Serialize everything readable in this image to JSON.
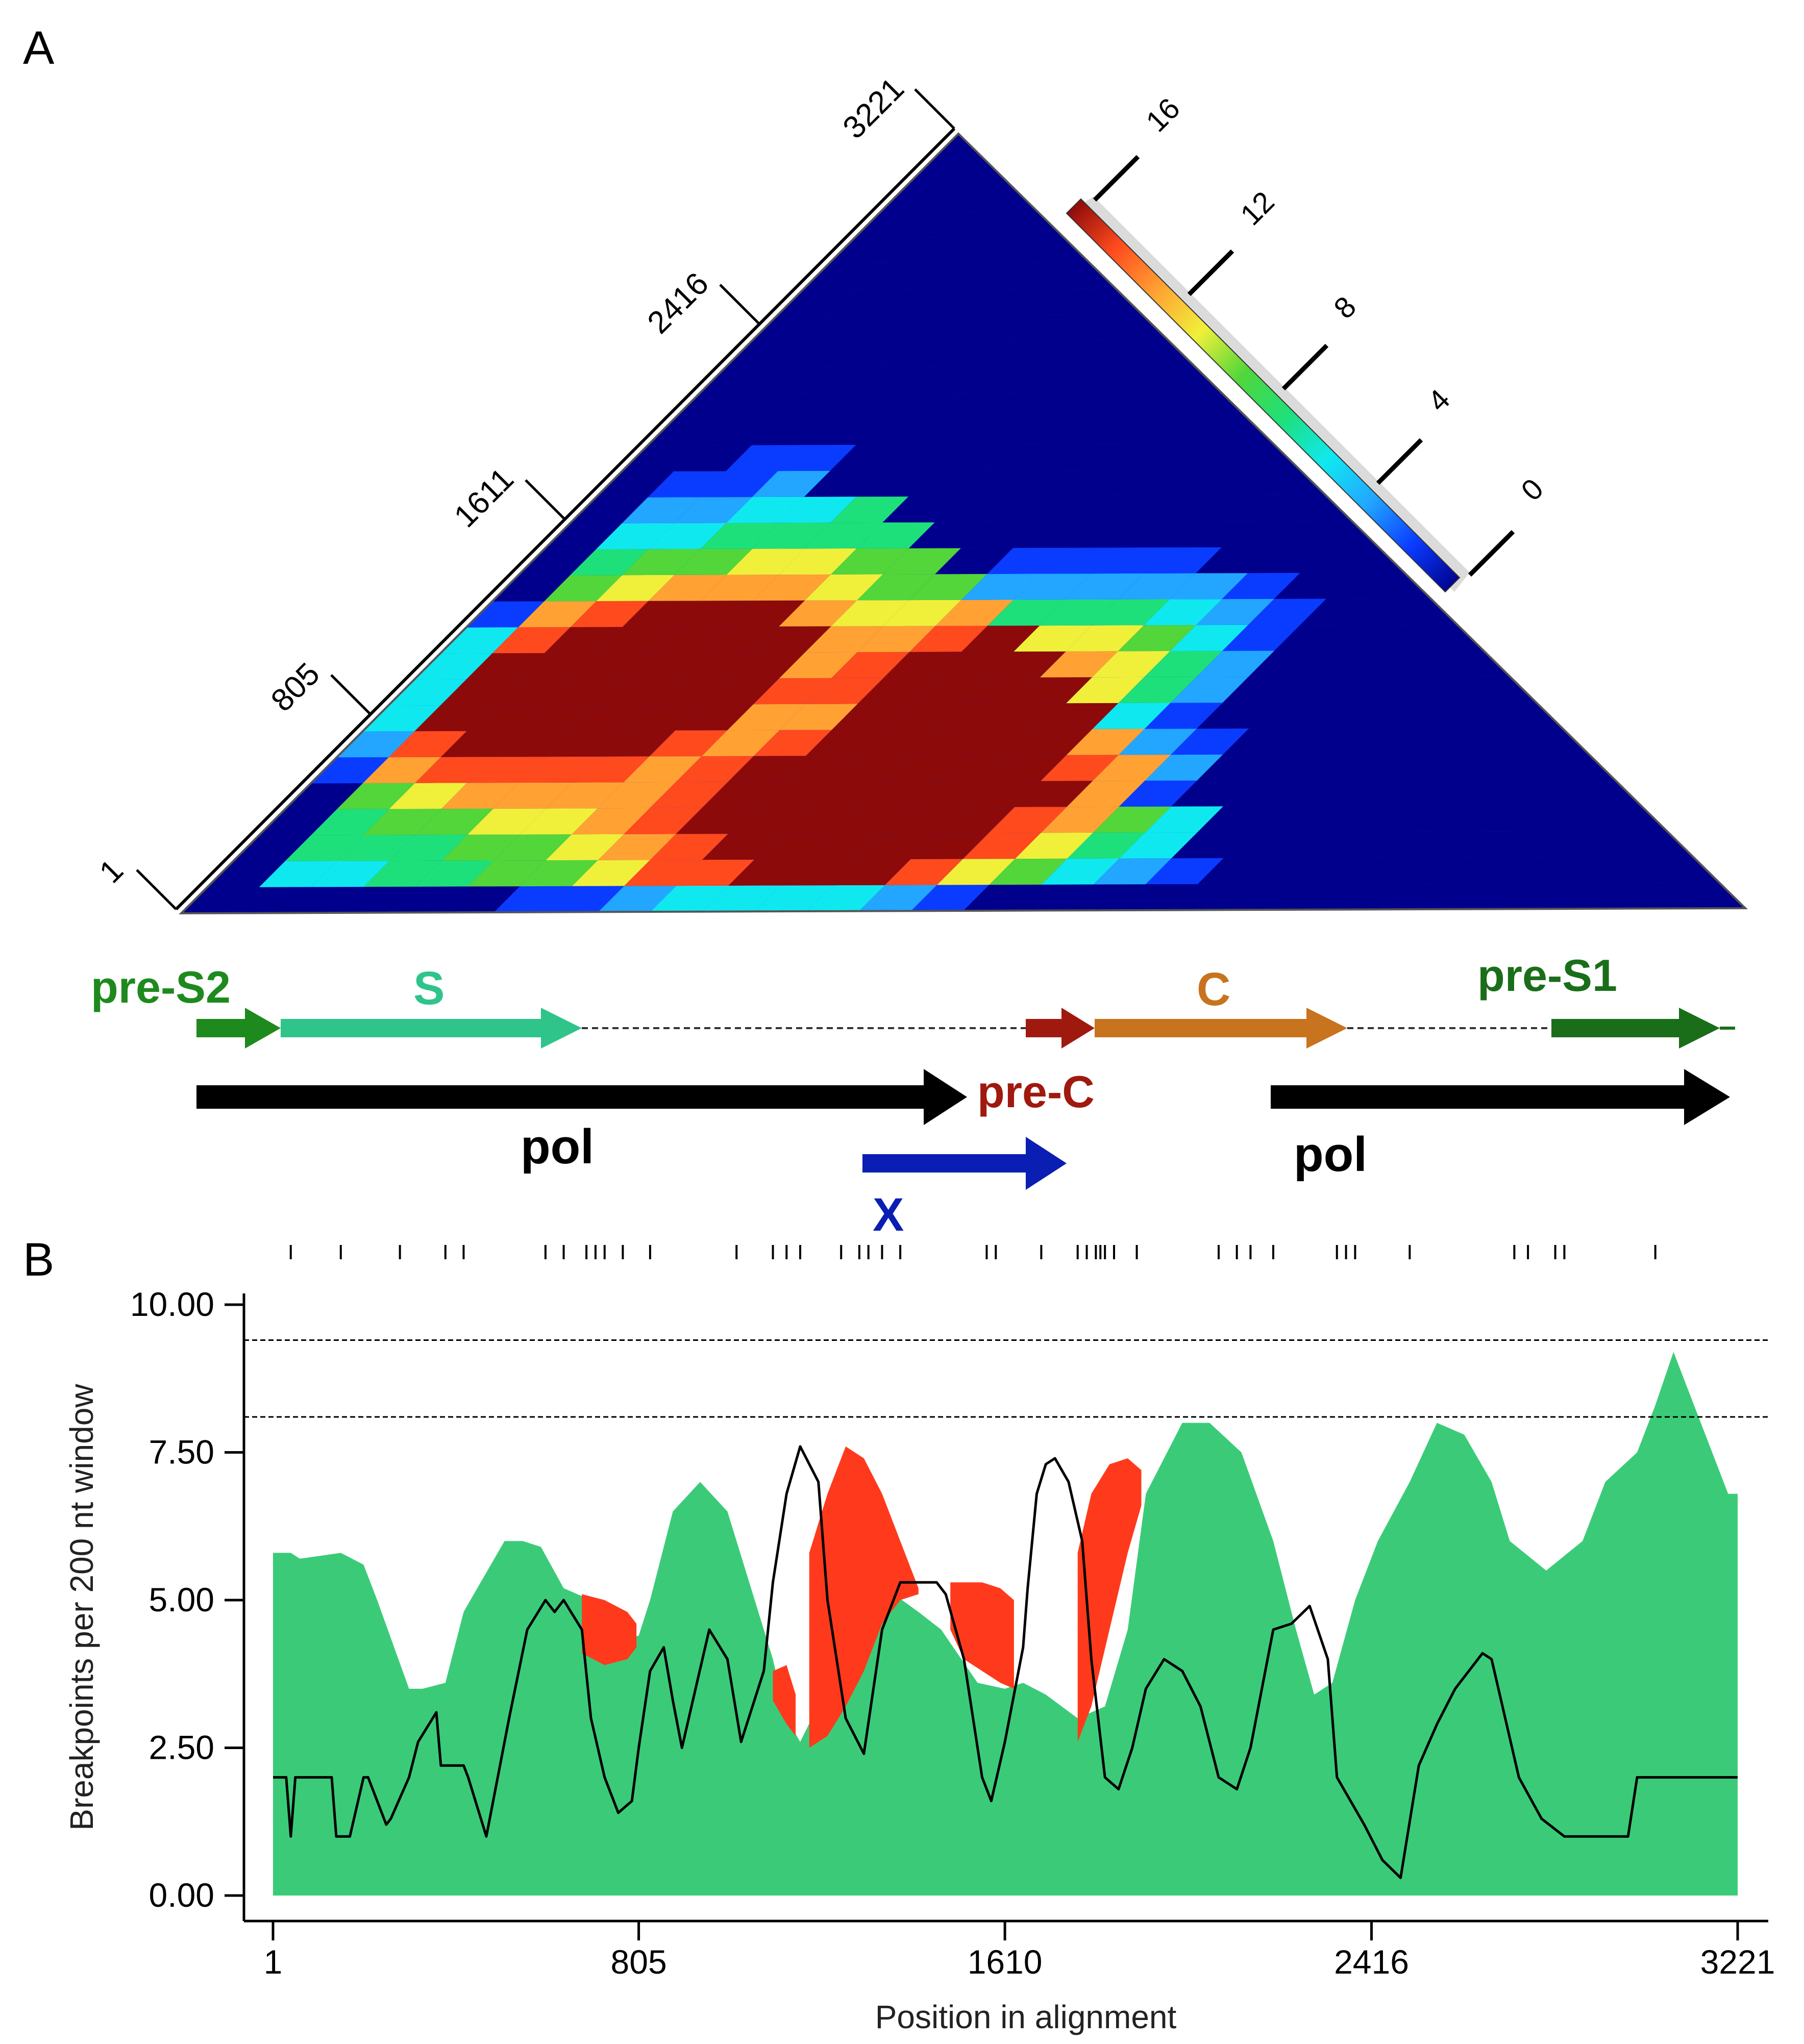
{
  "panel_a": {
    "label": "A",
    "triangle_tick_labels": [
      "1",
      "805",
      "1611",
      "2416",
      "3221"
    ],
    "colorbar": {
      "tick_labels": [
        "0",
        "4",
        "8",
        "12",
        "16"
      ],
      "colors": [
        "#00008c",
        "#0a3cff",
        "#22a6ff",
        "#10e8f0",
        "#1ee07a",
        "#52d63a",
        "#f0f03a",
        "#ffa233",
        "#ff4a1e",
        "#8c0a0a"
      ]
    },
    "genes": [
      {
        "id": "pre-S2",
        "label": "pre-S2",
        "color": "#1e8a1e"
      },
      {
        "id": "S",
        "label": "S",
        "color": "#2ec48a"
      },
      {
        "id": "C",
        "label": "C",
        "color": "#c8731e"
      },
      {
        "id": "pre-S1",
        "label": "pre-S1",
        "color": "#1a6e1a"
      },
      {
        "id": "pre-C",
        "label": "pre-C",
        "color": "#a0190f"
      },
      {
        "id": "pol-left",
        "label": "pol",
        "color": "#000000"
      },
      {
        "id": "pol-right",
        "label": "pol",
        "color": "#000000"
      },
      {
        "id": "X",
        "label": "X",
        "color": "#0a1eb4"
      }
    ]
  },
  "panel_b": {
    "label": "B"
  },
  "chart_data": {
    "type": "area",
    "xlabel": "Position in alignment",
    "ylabel": "Breakpoints per 200 nt window",
    "xlim": [
      1,
      3221
    ],
    "ylim": [
      0,
      10
    ],
    "x_ticks": [
      1,
      805,
      1610,
      2416,
      3221
    ],
    "x_tick_labels": [
      "1",
      "805",
      "1610",
      "2416",
      "3221"
    ],
    "y_ticks": [
      0,
      2.5,
      5,
      7.5,
      10
    ],
    "y_tick_labels": [
      "0.00",
      "2.50",
      "5.00",
      "7.50",
      "10.00"
    ],
    "threshold_lines": [
      9.4,
      8.1
    ],
    "breakpoint_ticks": [
      40,
      150,
      280,
      380,
      420,
      600,
      640,
      690,
      710,
      730,
      770,
      830,
      1020,
      1100,
      1130,
      1160,
      1250,
      1290,
      1310,
      1340,
      1380,
      1570,
      1590,
      1690,
      1770,
      1790,
      1810,
      1820,
      1830,
      1850,
      1900,
      2080,
      2120,
      2150,
      2200,
      2340,
      2360,
      2380,
      2500,
      2730,
      2760,
      2820,
      2840,
      3040
    ],
    "series": [
      {
        "type": "area",
        "color": "#3bcb78",
        "x": [
          1,
          40,
          60,
          150,
          200,
          230,
          300,
          330,
          380,
          420,
          450,
          510,
          550,
          590,
          640,
          700,
          760,
          805,
          830,
          880,
          940,
          1000,
          1060,
          1100,
          1130,
          1160,
          1250,
          1330,
          1420,
          1470,
          1550,
          1610,
          1650,
          1700,
          1770,
          1830,
          1880,
          1920,
          2000,
          2060,
          2130,
          2200,
          2250,
          2290,
          2330,
          2380,
          2430,
          2500,
          2560,
          2620,
          2680,
          2720,
          2800,
          2880,
          2930,
          3000,
          3040,
          3080,
          3140,
          3200,
          3221
        ],
        "y": [
          5.8,
          5.8,
          5.7,
          5.8,
          5.6,
          5.0,
          3.5,
          3.5,
          3.6,
          4.8,
          5.2,
          6.0,
          6.0,
          5.9,
          5.2,
          5.0,
          4.3,
          4.4,
          5.0,
          6.5,
          7.0,
          6.5,
          5.0,
          4.0,
          3.0,
          2.6,
          4.0,
          5.3,
          4.8,
          4.5,
          3.6,
          3.5,
          3.6,
          3.4,
          3.0,
          3.2,
          4.5,
          6.8,
          8.0,
          8.0,
          7.5,
          6.0,
          4.5,
          3.4,
          3.6,
          5.0,
          6.0,
          7.0,
          8.0,
          7.8,
          7.0,
          6.0,
          5.5,
          6.0,
          7.0,
          7.5,
          8.3,
          9.2,
          8.0,
          6.8,
          6.8
        ]
      },
      {
        "type": "line",
        "color": "#000000",
        "x": [
          1,
          30,
          40,
          50,
          130,
          140,
          170,
          200,
          210,
          250,
          260,
          300,
          320,
          360,
          370,
          400,
          420,
          430,
          470,
          520,
          560,
          600,
          620,
          640,
          680,
          700,
          730,
          760,
          790,
          805,
          830,
          860,
          880,
          900,
          930,
          960,
          1000,
          1030,
          1080,
          1100,
          1130,
          1160,
          1200,
          1220,
          1260,
          1300,
          1340,
          1380,
          1420,
          1460,
          1480,
          1520,
          1560,
          1580,
          1610,
          1650,
          1660,
          1680,
          1700,
          1720,
          1750,
          1780,
          1800,
          1830,
          1860,
          1890,
          1920,
          1960,
          2000,
          2040,
          2080,
          2120,
          2150,
          2200,
          2240,
          2280,
          2320,
          2340,
          2400,
          2440,
          2480,
          2520,
          2560,
          2600,
          2660,
          2680,
          2740,
          2790,
          2840,
          2880,
          2920,
          2980,
          3000,
          3040,
          3100,
          3140,
          3160,
          3200,
          3221
        ],
        "y": [
          2.0,
          2.0,
          1.0,
          2.0,
          2.0,
          1.0,
          1.0,
          2.0,
          2.0,
          1.2,
          1.3,
          2.0,
          2.6,
          3.1,
          2.2,
          2.2,
          2.2,
          2.0,
          1.0,
          3.0,
          4.5,
          5.0,
          4.8,
          5.0,
          4.5,
          3.0,
          2.0,
          1.4,
          1.6,
          2.5,
          3.8,
          4.2,
          3.3,
          2.5,
          3.5,
          4.5,
          4.0,
          2.6,
          3.8,
          5.3,
          6.8,
          7.6,
          7.0,
          5.0,
          3.0,
          2.4,
          4.5,
          5.3,
          5.3,
          5.3,
          5.1,
          4.0,
          2.0,
          1.6,
          2.6,
          4.2,
          5.2,
          6.8,
          7.3,
          7.4,
          7.0,
          6.0,
          4.0,
          2.0,
          1.8,
          2.5,
          3.5,
          4.0,
          3.8,
          3.2,
          2.0,
          1.8,
          2.5,
          4.5,
          4.6,
          4.9,
          4.0,
          2.0,
          1.2,
          0.6,
          0.3,
          2.2,
          2.9,
          3.5,
          4.1,
          4.0,
          2.0,
          1.3,
          1.0,
          1.0,
          1.0,
          1.0,
          2.0,
          2.0,
          2.0,
          2.0,
          2.0,
          2.0,
          2.0
        ]
      },
      {
        "type": "area_between",
        "color": "#ff3a1c",
        "segments": [
          {
            "x": [
              680,
              730,
              780,
              800
            ],
            "upper": [
              5.1,
              5.0,
              4.8,
              4.6
            ],
            "lower": [
              4.1,
              3.9,
              4.0,
              4.2
            ]
          },
          {
            "x": [
              1100,
              1130,
              1150
            ],
            "upper": [
              3.8,
              3.9,
              3.4
            ],
            "lower": [
              3.3,
              2.9,
              2.7
            ]
          },
          {
            "x": [
              1180,
              1220,
              1260,
              1300,
              1340,
              1380,
              1420
            ],
            "upper": [
              5.8,
              6.8,
              7.6,
              7.4,
              6.8,
              6.0,
              5.2
            ],
            "lower": [
              2.5,
              2.7,
              3.2,
              3.8,
              4.6,
              5.0,
              5.1
            ]
          },
          {
            "x": [
              1490,
              1520,
              1560,
              1600,
              1630
            ],
            "upper": [
              5.3,
              5.3,
              5.3,
              5.2,
              5.0
            ],
            "lower": [
              4.5,
              4.0,
              3.8,
              3.6,
              3.5
            ]
          },
          {
            "x": [
              1770,
              1800,
              1840,
              1880,
              1910
            ],
            "upper": [
              5.8,
              6.8,
              7.3,
              7.4,
              7.2
            ],
            "lower": [
              2.6,
              3.2,
              4.5,
              5.8,
              6.6
            ]
          }
        ]
      }
    ]
  }
}
